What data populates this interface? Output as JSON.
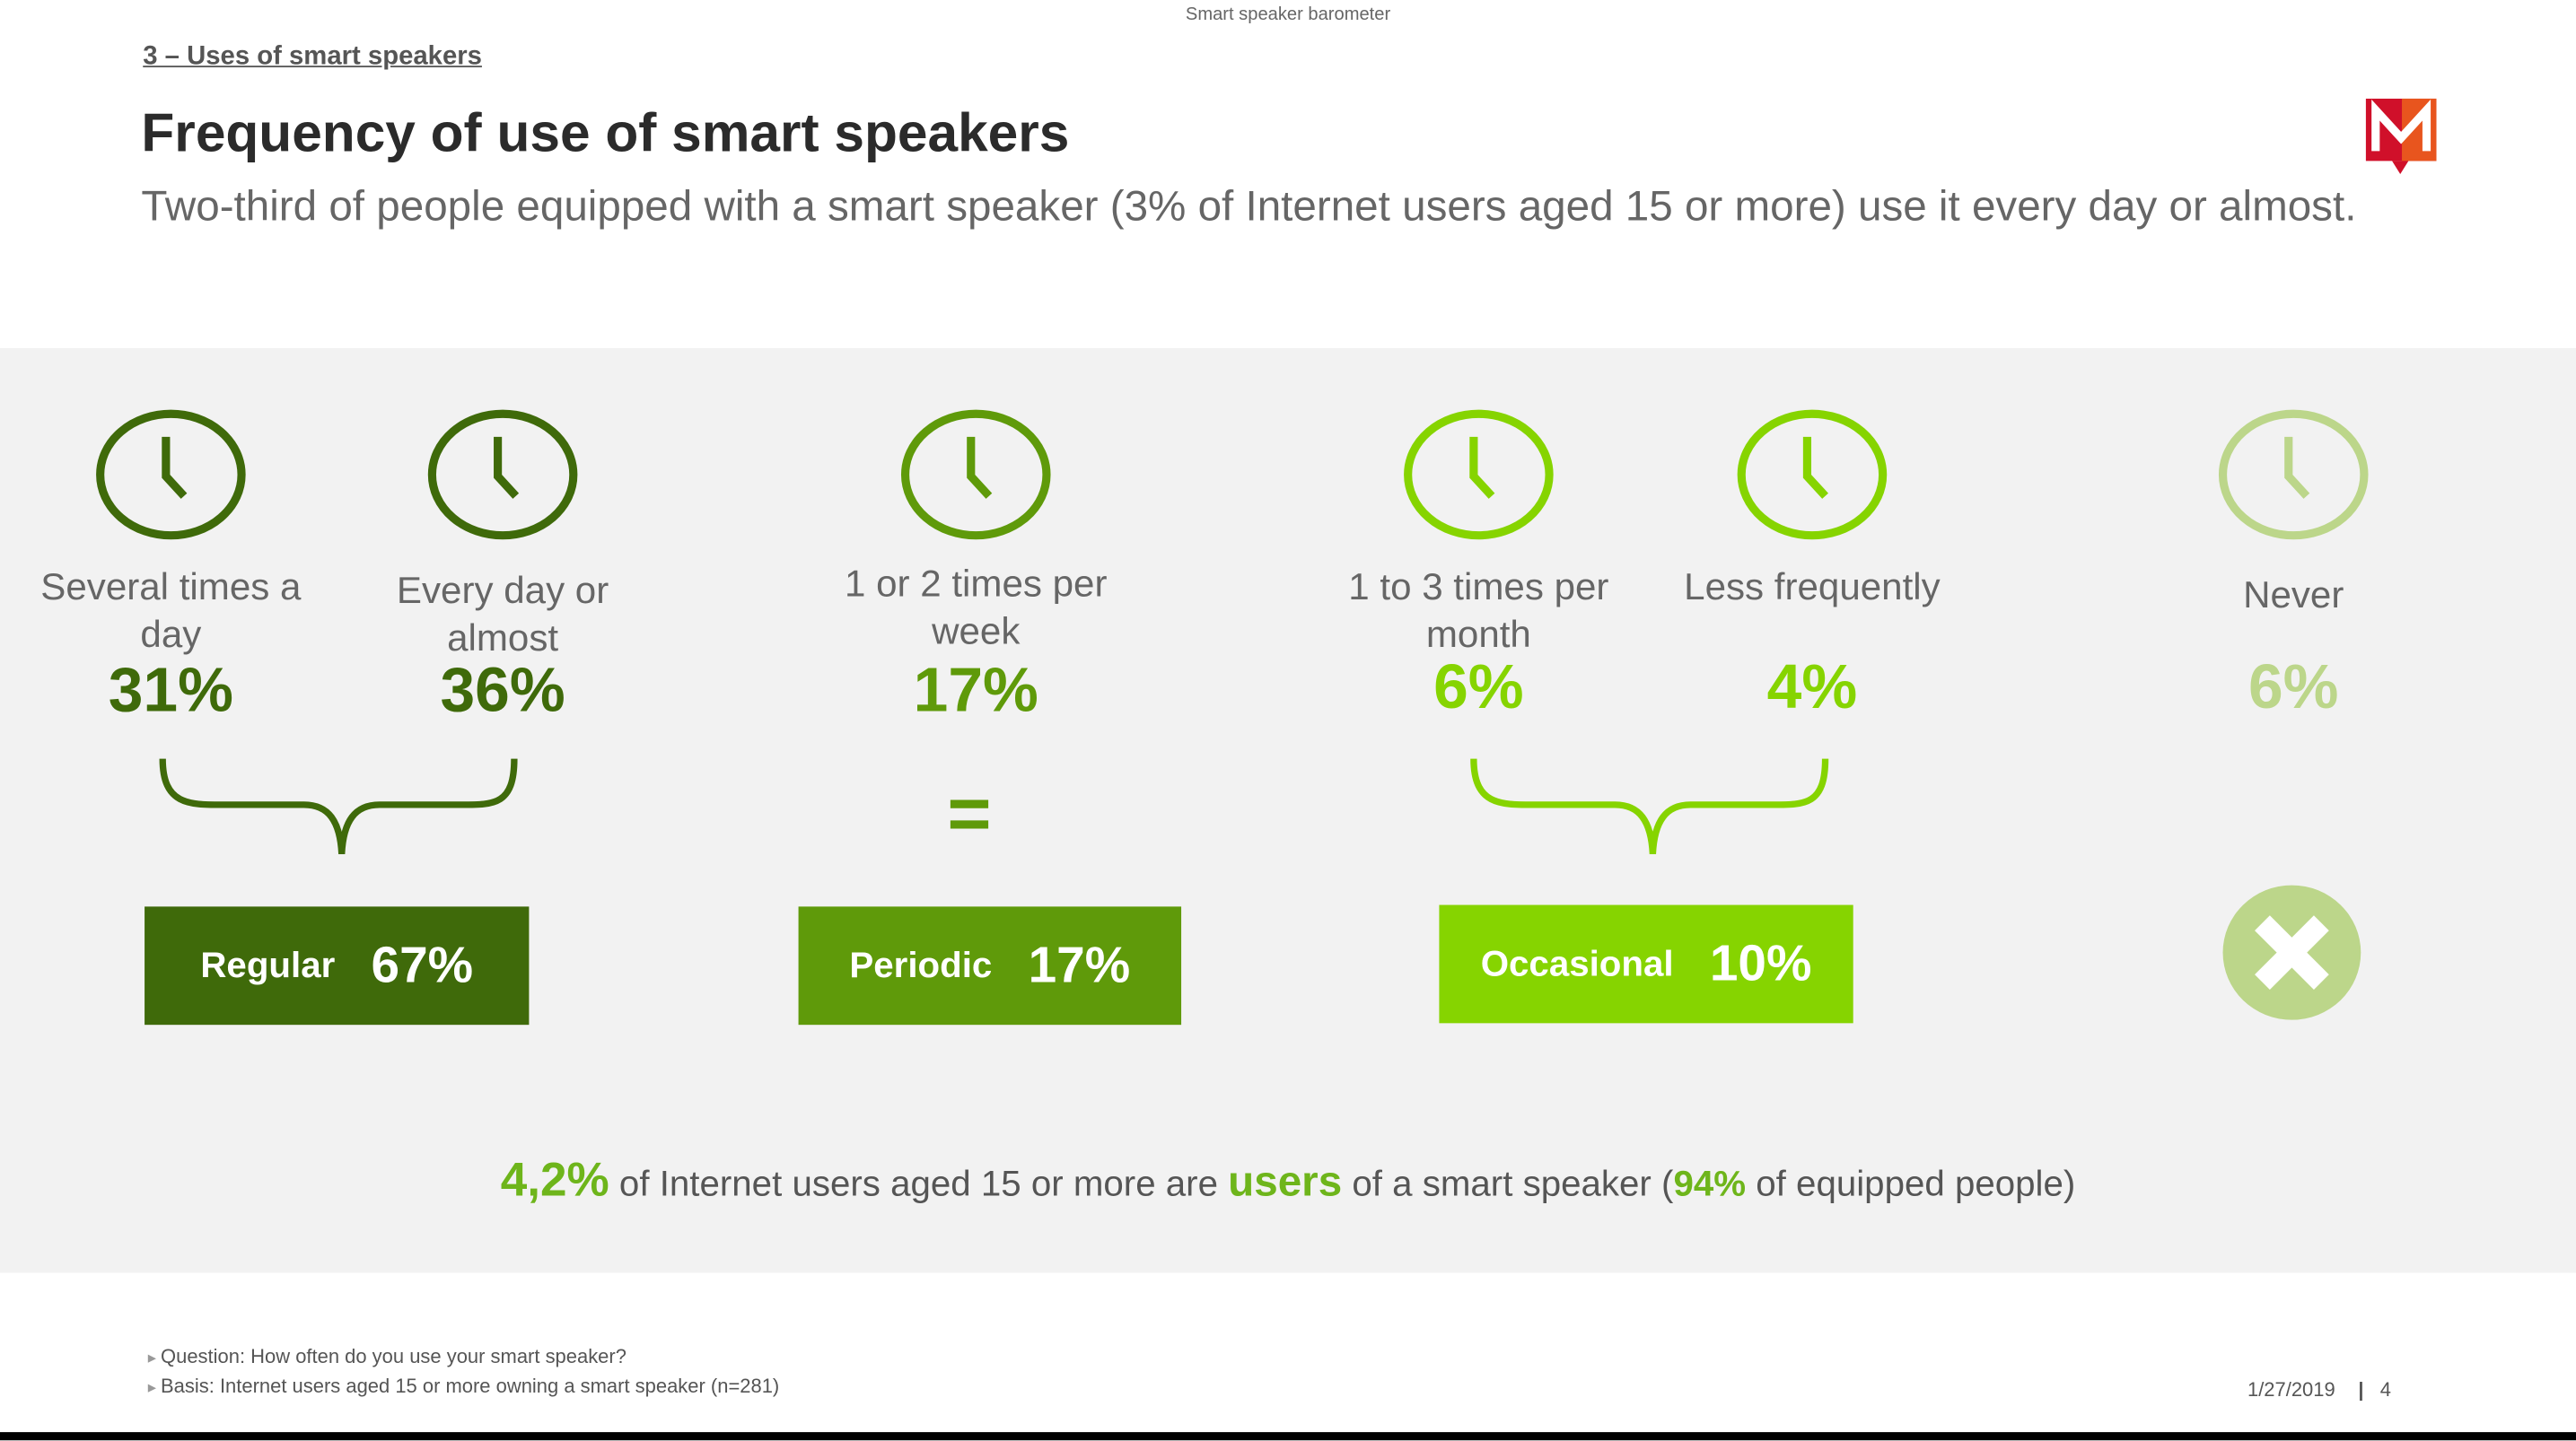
{
  "header": {
    "running_title": "Smart speaker barometer",
    "section": "3 – Uses of smart speakers",
    "title": "Frequency of use of smart speakers",
    "subtitle": "Two-third of people equipped with a smart speaker (3% of Internet users aged 15 or more) use it every day or almost."
  },
  "logo": {
    "letter": "M",
    "color": "#d0102a"
  },
  "frequencies": [
    {
      "label": "Several times a day",
      "value": "31%",
      "color": "#3f6a0a"
    },
    {
      "label": "Every day or almost",
      "value": "36%",
      "color": "#3f6a0a"
    },
    {
      "label": "1 or 2 times per week",
      "value": "17%",
      "color": "#5f9a0a"
    },
    {
      "label": "1 to 3 times per month",
      "value": "6%",
      "color": "#86d400"
    },
    {
      "label": "Less frequently",
      "value": "4%",
      "color": "#86d400"
    },
    {
      "label": "Never",
      "value": "6%",
      "color": "#bcd68a"
    }
  ],
  "equals_sign": "=",
  "groups": [
    {
      "name": "Regular",
      "value": "67%",
      "color": "#3f6a0a"
    },
    {
      "name": "Periodic",
      "value": "17%",
      "color": "#5f9a0a"
    },
    {
      "name": "Occasional",
      "value": "10%",
      "color": "#86d400"
    }
  ],
  "summary": {
    "p1": "4,2%",
    "p2": " of Internet users aged 15 or more are ",
    "p3": "users",
    "p4": " of a smart speaker (",
    "p5": "94%",
    "p6": " of equipped people)"
  },
  "footer": {
    "question": "Question: How often do you use your smart speaker?",
    "basis": "Basis: Internet users aged 15 or more owning a smart speaker (n=281)",
    "date": "1/27/2019",
    "page": "4"
  }
}
